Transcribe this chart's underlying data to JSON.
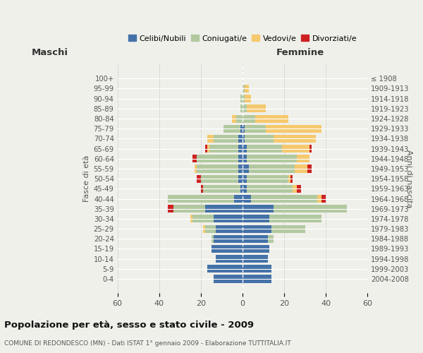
{
  "age_groups": [
    "0-4",
    "5-9",
    "10-14",
    "15-19",
    "20-24",
    "25-29",
    "30-34",
    "35-39",
    "40-44",
    "45-49",
    "50-54",
    "55-59",
    "60-64",
    "65-69",
    "70-74",
    "75-79",
    "80-84",
    "85-89",
    "90-94",
    "95-99",
    "100+"
  ],
  "birth_years": [
    "2004-2008",
    "1999-2003",
    "1994-1998",
    "1989-1993",
    "1984-1988",
    "1979-1983",
    "1974-1978",
    "1969-1973",
    "1964-1968",
    "1959-1963",
    "1954-1958",
    "1949-1953",
    "1944-1948",
    "1939-1943",
    "1934-1938",
    "1929-1933",
    "1924-1928",
    "1919-1923",
    "1914-1918",
    "1909-1913",
    "≤ 1908"
  ],
  "male": {
    "celibi": [
      14,
      17,
      13,
      15,
      14,
      13,
      14,
      18,
      4,
      1,
      2,
      2,
      2,
      2,
      2,
      1,
      0,
      0,
      0,
      0,
      0
    ],
    "coniugati": [
      0,
      0,
      0,
      0,
      1,
      5,
      10,
      15,
      32,
      18,
      18,
      20,
      20,
      14,
      12,
      8,
      3,
      1,
      1,
      0,
      0
    ],
    "vedovi": [
      0,
      0,
      0,
      0,
      0,
      1,
      1,
      0,
      0,
      0,
      0,
      1,
      0,
      1,
      3,
      0,
      2,
      0,
      0,
      0,
      0
    ],
    "divorziati": [
      0,
      0,
      0,
      0,
      0,
      0,
      0,
      3,
      0,
      1,
      2,
      0,
      2,
      1,
      0,
      0,
      0,
      0,
      0,
      0,
      0
    ]
  },
  "female": {
    "nubili": [
      14,
      14,
      12,
      13,
      12,
      14,
      13,
      15,
      4,
      2,
      2,
      3,
      2,
      2,
      1,
      1,
      0,
      0,
      0,
      0,
      0
    ],
    "coniugate": [
      0,
      0,
      0,
      0,
      3,
      16,
      25,
      35,
      32,
      22,
      20,
      22,
      24,
      17,
      14,
      10,
      6,
      2,
      1,
      1,
      0
    ],
    "vedove": [
      0,
      0,
      0,
      0,
      0,
      0,
      0,
      0,
      2,
      2,
      1,
      6,
      6,
      13,
      20,
      27,
      16,
      9,
      3,
      2,
      0
    ],
    "divorziate": [
      0,
      0,
      0,
      0,
      0,
      0,
      0,
      0,
      2,
      2,
      1,
      2,
      0,
      1,
      0,
      0,
      0,
      0,
      0,
      0,
      0
    ]
  },
  "colors": {
    "celibi": "#4472a8",
    "coniugati": "#b2c9a0",
    "vedovi": "#f5c96e",
    "divorziati": "#cc2222"
  },
  "title": "Popolazione per età, sesso e stato civile - 2009",
  "subtitle": "COMUNE DI REDONDESCO (MN) - Dati ISTAT 1° gennaio 2009 - Elaborazione TUTTITALIA.IT",
  "xlabel_left": "Maschi",
  "xlabel_right": "Femmine",
  "ylabel_left": "Fasce di età",
  "ylabel_right": "Anni di nascita",
  "xlim": 60,
  "bg_color": "#f0f0eb",
  "grid_color": "#cccccc"
}
